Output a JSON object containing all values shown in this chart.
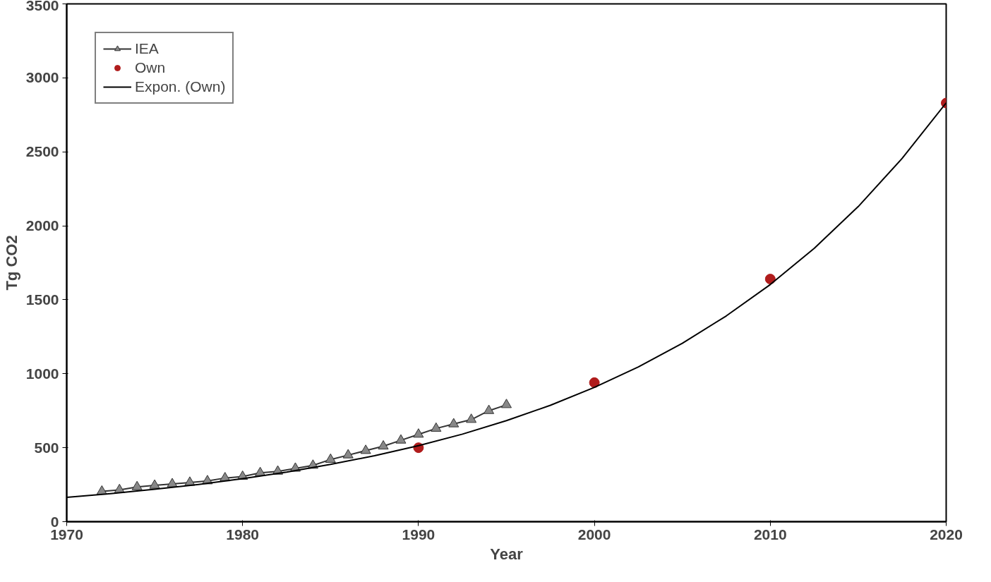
{
  "chart_data": {
    "type": "line",
    "xlabel": "Year",
    "ylabel": "Tg CO2",
    "xlim": [
      1970,
      2020
    ],
    "ylim": [
      0,
      3500
    ],
    "xticks": [
      1970,
      1980,
      1990,
      2000,
      2010,
      2020
    ],
    "yticks": [
      0,
      500,
      1000,
      1500,
      2000,
      2500,
      3000,
      3500
    ],
    "grid": false,
    "legend": "top left",
    "series": [
      {
        "name": "IEA",
        "marker": "triangle",
        "color": "#333333",
        "x": [
          1972,
          1973,
          1974,
          1975,
          1976,
          1977,
          1978,
          1979,
          1980,
          1981,
          1982,
          1983,
          1984,
          1985,
          1986,
          1987,
          1988,
          1989,
          1990,
          1991,
          1992,
          1993,
          1994,
          1995
        ],
        "values": [
          205,
          215,
          235,
          245,
          255,
          265,
          275,
          295,
          305,
          330,
          340,
          360,
          380,
          420,
          450,
          480,
          510,
          550,
          590,
          630,
          660,
          690,
          750,
          790
        ]
      },
      {
        "name": "Own",
        "type": "scatter",
        "marker": "circle",
        "color": "#b01c1c",
        "x": [
          1990,
          2000,
          2010,
          2020
        ],
        "values": [
          500,
          940,
          1640,
          2830
        ]
      },
      {
        "name": "Expon. (Own)",
        "marker": "none",
        "color": "#000000",
        "x": [
          1970,
          1972.5,
          1975,
          1977.5,
          1980,
          1982.5,
          1985,
          1987.5,
          1990,
          1992.5,
          1995,
          1997.5,
          2000,
          2002.5,
          2005,
          2007.5,
          2010,
          2012.5,
          2015,
          2017.5,
          2020
        ],
        "values": [
          165,
          190,
          219,
          252,
          291,
          335,
          387,
          446,
          514,
          592,
          683,
          787,
          908,
          1046,
          1206,
          1391,
          1603,
          1848,
          2130,
          2456,
          2831
        ]
      }
    ]
  }
}
